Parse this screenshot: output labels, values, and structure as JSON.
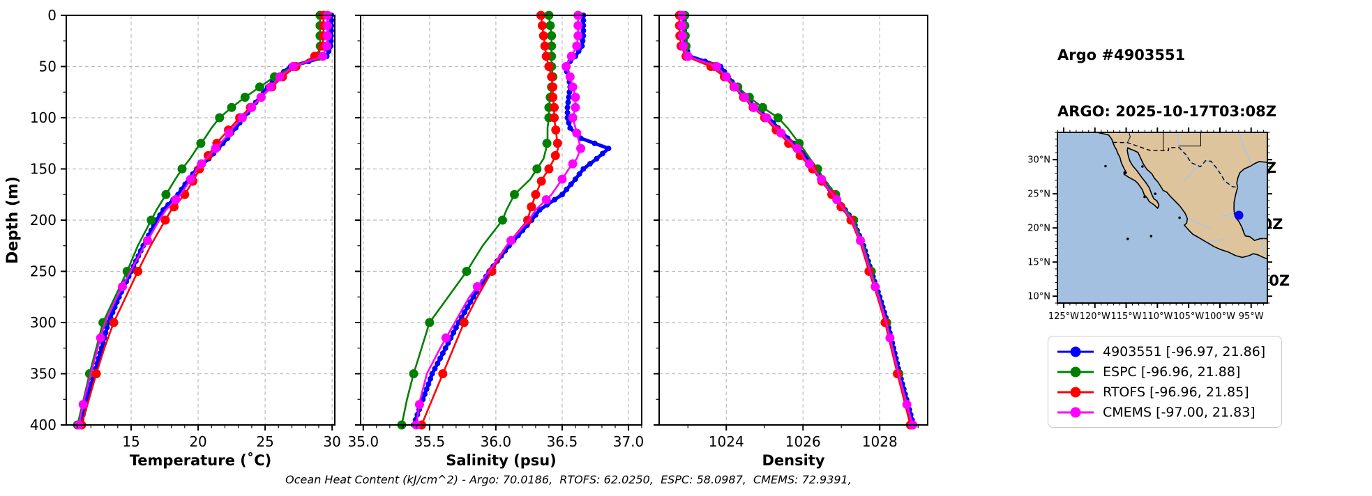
{
  "header": {
    "lines": [
      "Argo #4903551",
      "ARGO: 2025-10-17T03:08Z",
      "ESPC : 2025-10-17T03:00Z",
      "RTOFS: 2025-10-17T06:00Z",
      "CMEMS: 2025-10-17T06:00Z"
    ]
  },
  "footer": {
    "text": "Ocean Heat Content (kJ/cm^2) - Argo: 70.0186,  RTOFS: 62.0250,  ESPC: 58.0987,  CMEMS: 72.9391,"
  },
  "legend": {
    "entries": [
      {
        "label": "4903551 [-96.97, 21.86]",
        "color": "#0000ff"
      },
      {
        "label": "ESPC [-96.96, 21.88]",
        "color": "#008000"
      },
      {
        "label": "RTOFS [-96.96, 21.85]",
        "color": "#ff0000"
      },
      {
        "label": "CMEMS [-97.00, 21.83]",
        "color": "#ff00ff"
      }
    ]
  },
  "chart_data": {
    "type": "line",
    "ylabel": "Depth (m)",
    "ylim": [
      0,
      400
    ],
    "yticks": [
      0,
      50,
      100,
      150,
      200,
      250,
      300,
      350,
      400
    ],
    "y_minor_step": 25,
    "grid": true,
    "depths": [
      0,
      10,
      20,
      30,
      40,
      50,
      60,
      70,
      80,
      90,
      100,
      110,
      120,
      130,
      140,
      150,
      160,
      175,
      190,
      200,
      225,
      250,
      275,
      300,
      325,
      350,
      375,
      400
    ],
    "panels": [
      {
        "key": "temperature",
        "xlabel": "Temperature (˚C)",
        "xlim": [
          10.16,
          30.2
        ],
        "xticks": [
          15,
          20,
          25,
          30
        ],
        "minor_step": 1,
        "tick_decimals": 0
      },
      {
        "key": "salinity",
        "xlabel": "Salinity (psu)",
        "xlim": [
          34.98,
          37.1
        ],
        "xticks": [
          35.0,
          35.5,
          36.0,
          36.5,
          37.0
        ],
        "minor_step": 0.1,
        "tick_decimals": 1
      },
      {
        "key": "density",
        "xlabel": "Density",
        "xlim": [
          1022.25,
          1029.25
        ],
        "xticks": [
          1024,
          1026,
          1028
        ],
        "minor_step": 1,
        "tick_decimals": 0
      }
    ],
    "series": [
      {
        "name": "4903551",
        "color": "#0000ff",
        "line_width": 5,
        "marker_radius": 4,
        "marker_every_m": 5,
        "temperature": [
          29.95,
          29.95,
          29.93,
          29.9,
          29.6,
          26.9,
          25.9,
          25.2,
          24.6,
          24.0,
          23.4,
          22.8,
          22.2,
          21.5,
          20.8,
          19.9,
          19.3,
          18.5,
          17.4,
          16.9,
          15.9,
          15.0,
          14.1,
          13.3,
          12.8,
          12.25,
          11.7,
          11.2
        ],
        "salinity": [
          36.66,
          36.66,
          36.66,
          36.65,
          36.6,
          36.52,
          36.55,
          36.56,
          36.55,
          36.54,
          36.54,
          36.56,
          36.64,
          36.85,
          36.76,
          36.66,
          36.6,
          36.5,
          36.33,
          36.27,
          36.1,
          35.95,
          35.83,
          35.72,
          35.62,
          35.52,
          35.45,
          35.38
        ],
        "density": [
          1022.9,
          1022.9,
          1022.91,
          1022.93,
          1023.05,
          1023.85,
          1024.05,
          1024.25,
          1024.5,
          1024.75,
          1025.1,
          1025.35,
          1025.6,
          1025.9,
          1026.1,
          1026.3,
          1026.5,
          1026.8,
          1027.1,
          1027.3,
          1027.58,
          1027.78,
          1028.0,
          1028.2,
          1028.36,
          1028.52,
          1028.7,
          1028.88
        ]
      },
      {
        "name": "ESPC",
        "color": "#008000",
        "line_width": 2.6,
        "marker_radius": 6.5,
        "marker_depths": [
          0,
          10,
          20,
          30,
          40,
          50,
          60,
          70,
          80,
          90,
          100,
          125,
          150,
          175,
          200,
          250,
          300,
          350,
          400
        ],
        "temperature": [
          29.1,
          29.1,
          29.1,
          29.12,
          29.0,
          27.1,
          25.7,
          24.6,
          23.5,
          22.5,
          21.6,
          21.0,
          20.5,
          19.9,
          19.4,
          18.8,
          18.3,
          17.6,
          16.9,
          16.5,
          15.5,
          14.7,
          13.8,
          12.9,
          12.4,
          11.9,
          11.45,
          11.0
        ],
        "salinity": [
          36.4,
          36.41,
          36.42,
          36.42,
          36.42,
          36.42,
          36.43,
          36.42,
          36.41,
          36.4,
          36.4,
          36.39,
          36.39,
          36.38,
          36.36,
          36.31,
          36.26,
          36.14,
          36.08,
          36.05,
          35.9,
          35.78,
          35.64,
          35.5,
          35.44,
          35.38,
          35.33,
          35.29
        ],
        "density": [
          1022.92,
          1022.92,
          1022.93,
          1022.95,
          1023.0,
          1023.7,
          1024.0,
          1024.3,
          1024.6,
          1024.95,
          1025.35,
          1025.6,
          1025.8,
          1026.0,
          1026.18,
          1026.38,
          1026.55,
          1026.85,
          1027.12,
          1027.32,
          1027.58,
          1027.78,
          1027.99,
          1028.18,
          1028.34,
          1028.5,
          1028.68,
          1028.85
        ]
      },
      {
        "name": "RTOFS",
        "color": "#ff0000",
        "line_width": 2.6,
        "marker_radius": 6.5,
        "marker_depths": [
          0,
          10,
          20,
          30,
          40,
          50,
          60,
          70,
          80,
          90,
          100,
          112,
          125,
          137,
          150,
          162,
          175,
          187,
          200,
          250,
          300,
          350,
          400
        ],
        "temperature": [
          29.35,
          29.35,
          29.35,
          29.3,
          28.7,
          27.3,
          26.3,
          25.5,
          24.7,
          23.9,
          23.1,
          22.4,
          21.7,
          21.1,
          20.6,
          20.1,
          19.7,
          19.0,
          18.0,
          17.55,
          16.45,
          15.5,
          14.6,
          13.7,
          13.0,
          12.4,
          11.85,
          11.3
        ],
        "salinity": [
          36.34,
          36.35,
          36.36,
          36.37,
          36.38,
          36.4,
          36.42,
          36.43,
          36.43,
          36.44,
          36.44,
          36.45,
          36.46,
          36.47,
          36.44,
          36.4,
          36.35,
          36.3,
          36.26,
          36.24,
          36.08,
          35.97,
          35.86,
          35.76,
          35.68,
          35.6,
          35.52,
          35.44
        ],
        "density": [
          1022.78,
          1022.78,
          1022.79,
          1022.82,
          1022.95,
          1023.6,
          1023.95,
          1024.2,
          1024.45,
          1024.7,
          1025.0,
          1025.25,
          1025.5,
          1025.75,
          1026.0,
          1026.25,
          1026.45,
          1026.75,
          1027.05,
          1027.25,
          1027.52,
          1027.72,
          1027.94,
          1028.14,
          1028.3,
          1028.46,
          1028.63,
          1028.8
        ]
      },
      {
        "name": "CMEMS",
        "color": "#ff00ff",
        "line_width": 2.6,
        "marker_radius": 6.5,
        "marker_depths": [
          0,
          10,
          20,
          30,
          40,
          50,
          60,
          70,
          80,
          90,
          100,
          115,
          130,
          145,
          160,
          180,
          220,
          265,
          315,
          380,
          400
        ],
        "temperature": [
          29.65,
          29.65,
          29.65,
          29.6,
          29.3,
          27.1,
          26.1,
          25.4,
          24.7,
          24.0,
          23.3,
          22.6,
          22.0,
          21.3,
          20.6,
          19.9,
          19.45,
          18.7,
          17.6,
          17.1,
          16.0,
          14.95,
          13.95,
          13.05,
          12.5,
          12.0,
          11.5,
          11.1
        ],
        "salinity": [
          36.62,
          36.62,
          36.62,
          36.61,
          36.57,
          36.53,
          36.56,
          36.58,
          36.6,
          36.6,
          36.58,
          36.6,
          36.62,
          36.64,
          36.61,
          36.55,
          36.5,
          36.42,
          36.3,
          36.25,
          36.08,
          35.95,
          35.8,
          35.69,
          35.58,
          35.48,
          35.43,
          35.4
        ],
        "density": [
          1022.85,
          1022.85,
          1022.86,
          1022.88,
          1023.0,
          1023.75,
          1024.0,
          1024.22,
          1024.48,
          1024.72,
          1025.05,
          1025.3,
          1025.55,
          1025.85,
          1026.05,
          1026.28,
          1026.48,
          1026.78,
          1027.08,
          1027.28,
          1027.55,
          1027.75,
          1027.97,
          1028.17,
          1028.33,
          1028.49,
          1028.67,
          1028.86
        ]
      }
    ]
  },
  "map": {
    "extent": {
      "lon_min": -126,
      "lon_max": -92.4,
      "lat_min": 9,
      "lat_max": 34
    },
    "ocean_color": "#a4c0e0",
    "land_color": "#dec49c",
    "river_color": "#a9c6e8",
    "xticks": [
      {
        "lon": -125,
        "label": "125°W"
      },
      {
        "lon": -120,
        "label": "120°W"
      },
      {
        "lon": -115,
        "label": "115°W"
      },
      {
        "lon": -110,
        "label": "110°W"
      },
      {
        "lon": -105,
        "label": "105°W"
      },
      {
        "lon": -100,
        "label": "100°W"
      },
      {
        "lon": -95,
        "label": "95°W"
      }
    ],
    "yticks": [
      {
        "lat": 30,
        "label": "30°N"
      },
      {
        "lat": 25,
        "label": "25°N"
      },
      {
        "lat": 20,
        "label": "20°N"
      },
      {
        "lat": 15,
        "label": "15°N"
      },
      {
        "lat": 10,
        "label": "10°N"
      }
    ],
    "marker": {
      "lon": -96.97,
      "lat": 21.86,
      "color": "#0000ff"
    },
    "coastline": [
      [
        -120.5,
        34.2
      ],
      [
        -119.7,
        34.0
      ],
      [
        -118.4,
        33.74
      ],
      [
        -117.8,
        33.6
      ],
      [
        -117.3,
        33.0
      ],
      [
        -117.12,
        32.53
      ],
      [
        -116.85,
        31.9
      ],
      [
        -116.6,
        31.55
      ],
      [
        -116.3,
        30.85
      ],
      [
        -116.0,
        30.35
      ],
      [
        -115.8,
        29.6
      ],
      [
        -115.4,
        28.8
      ],
      [
        -114.95,
        28.05
      ],
      [
        -115.35,
        27.87
      ],
      [
        -114.55,
        27.4
      ],
      [
        -113.95,
        27.1
      ],
      [
        -113.55,
        26.9
      ],
      [
        -113.1,
        26.5
      ],
      [
        -112.4,
        25.6
      ],
      [
        -112.1,
        24.85
      ],
      [
        -111.65,
        24.4
      ],
      [
        -111.3,
        23.85
      ],
      [
        -110.55,
        23.4
      ],
      [
        -109.95,
        22.88
      ],
      [
        -109.75,
        23.35
      ],
      [
        -110.1,
        24.0
      ],
      [
        -110.55,
        24.25
      ],
      [
        -110.9,
        24.9
      ],
      [
        -111.3,
        25.9
      ],
      [
        -111.9,
        26.7
      ],
      [
        -112.5,
        27.4
      ],
      [
        -113.3,
        28.4
      ],
      [
        -113.95,
        29.1
      ],
      [
        -114.4,
        29.8
      ],
      [
        -114.65,
        30.5
      ],
      [
        -114.82,
        31.3
      ],
      [
        -114.75,
        31.75
      ],
      [
        -114.35,
        31.55
      ],
      [
        -113.75,
        31.35
      ],
      [
        -113.1,
        31.05
      ],
      [
        -112.75,
        30.35
      ],
      [
        -112.2,
        29.3
      ],
      [
        -111.7,
        28.6
      ],
      [
        -110.9,
        27.95
      ],
      [
        -110.5,
        27.3
      ],
      [
        -109.9,
        26.7
      ],
      [
        -109.35,
        25.9
      ],
      [
        -109.1,
        25.5
      ],
      [
        -108.5,
        25.25
      ],
      [
        -107.9,
        24.6
      ],
      [
        -107.3,
        24.05
      ],
      [
        -106.4,
        23.2
      ],
      [
        -105.6,
        22.2
      ],
      [
        -105.2,
        21.4
      ],
      [
        -105.3,
        20.72
      ],
      [
        -105.68,
        20.4
      ],
      [
        -104.8,
        19.5
      ],
      [
        -104.3,
        19.05
      ],
      [
        -103.5,
        18.65
      ],
      [
        -102.2,
        17.95
      ],
      [
        -100.9,
        17.25
      ],
      [
        -99.9,
        16.85
      ],
      [
        -98.6,
        16.45
      ],
      [
        -97.5,
        15.95
      ],
      [
        -96.4,
        15.68
      ],
      [
        -95.3,
        15.95
      ],
      [
        -94.65,
        16.22
      ],
      [
        -93.9,
        16.05
      ],
      [
        -93.1,
        15.7
      ],
      [
        -92.4,
        15.45
      ],
      [
        -92.4,
        18.45
      ],
      [
        -93.6,
        18.43
      ],
      [
        -94.45,
        18.15
      ],
      [
        -95.2,
        18.72
      ],
      [
        -95.9,
        18.82
      ],
      [
        -96.13,
        19.2
      ],
      [
        -96.45,
        20.05
      ],
      [
        -96.95,
        20.95
      ],
      [
        -97.34,
        21.35
      ],
      [
        -97.7,
        22.1
      ],
      [
        -97.75,
        22.9
      ],
      [
        -97.72,
        23.8
      ],
      [
        -97.45,
        25.0
      ],
      [
        -97.15,
        25.95
      ],
      [
        -97.3,
        26.55
      ],
      [
        -97.1,
        27.4
      ],
      [
        -96.8,
        28.1
      ],
      [
        -96.1,
        28.65
      ],
      [
        -95.1,
        29.05
      ],
      [
        -94.4,
        29.45
      ],
      [
        -93.7,
        29.72
      ],
      [
        -92.4,
        29.6
      ],
      [
        -92.4,
        34.2
      ],
      [
        -120.5,
        34.2
      ]
    ],
    "border_dashed": [
      [
        -117.12,
        32.53
      ],
      [
        -114.8,
        32.5
      ],
      [
        -111.07,
        31.33
      ],
      [
        -108.21,
        31.33
      ],
      [
        -108.21,
        31.78
      ],
      [
        -106.53,
        31.78
      ],
      [
        -105.4,
        30.7
      ],
      [
        -104.6,
        29.55
      ],
      [
        -103.1,
        28.97
      ],
      [
        -102.3,
        29.85
      ],
      [
        -101.4,
        29.77
      ],
      [
        -100.3,
        28.5
      ],
      [
        -99.2,
        26.85
      ],
      [
        -98.0,
        26.05
      ],
      [
        -97.15,
        25.95
      ]
    ],
    "state_lines": [
      [
        [
          -114.63,
          34.2
        ],
        [
          -114.35,
          33.35
        ],
        [
          -114.52,
          33.0
        ],
        [
          -114.8,
          32.5
        ]
      ],
      [
        [
          -109.05,
          34.2
        ],
        [
          -109.05,
          31.33
        ]
      ],
      [
        [
          -103.06,
          34.2
        ],
        [
          -103.06,
          32.0
        ]
      ],
      [
        [
          -106.62,
          32.0
        ],
        [
          -103.06,
          32.0
        ]
      ]
    ],
    "rivers": [
      [
        [
          -106.8,
          34.2
        ],
        [
          -106.55,
          31.9
        ],
        [
          -105.4,
          30.7
        ],
        [
          -104.6,
          29.55
        ],
        [
          -103.1,
          28.97
        ],
        [
          -102.3,
          29.85
        ],
        [
          -101.4,
          29.77
        ],
        [
          -100.3,
          28.5
        ],
        [
          -99.2,
          26.85
        ],
        [
          -98.0,
          26.05
        ],
        [
          -97.15,
          25.95
        ]
      ],
      [
        [
          -114.6,
          34.2
        ],
        [
          -114.35,
          33.3
        ],
        [
          -114.55,
          32.9
        ],
        [
          -114.8,
          32.4
        ],
        [
          -114.9,
          31.9
        ]
      ],
      [
        [
          -97.0,
          34.2
        ],
        [
          -96.2,
          31.9
        ],
        [
          -95.4,
          30.3
        ],
        [
          -95.0,
          29.4
        ]
      ],
      [
        [
          -105.9,
          26.7
        ],
        [
          -104.9,
          27.7
        ],
        [
          -104.0,
          28.7
        ],
        [
          -103.25,
          29.0
        ]
      ],
      [
        [
          -99.8,
          21.7
        ],
        [
          -98.6,
          21.95
        ],
        [
          -97.75,
          22.25
        ]
      ],
      [
        [
          -99.3,
          18.3
        ],
        [
          -100.8,
          18.1
        ],
        [
          -102.1,
          17.98
        ]
      ],
      [
        [
          -92.75,
          16.2
        ],
        [
          -93.3,
          17.3
        ],
        [
          -92.95,
          18.42
        ]
      ],
      [
        [
          -101.5,
          19.9
        ],
        [
          -103.3,
          20.6
        ],
        [
          -105.2,
          21.6
        ]
      ]
    ],
    "islands": [
      [
        -118.3,
        29.05
      ],
      [
        -115.25,
        28.1
      ],
      [
        -114.75,
        18.4
      ],
      [
        -111.0,
        18.8
      ],
      [
        -106.45,
        21.5
      ],
      [
        -112.05,
        24.55
      ],
      [
        -110.35,
        25.0
      ],
      [
        -112.4,
        29.0
      ]
    ]
  }
}
